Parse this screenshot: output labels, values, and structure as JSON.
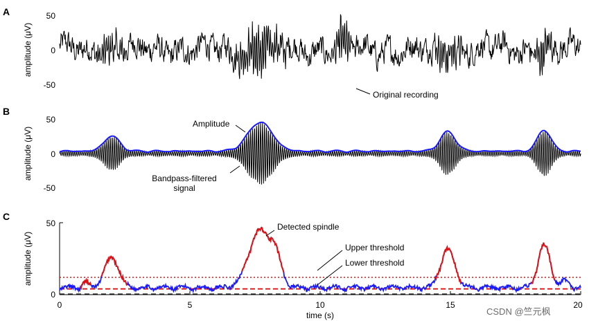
{
  "watermark": "CSDN @竺元枫",
  "chart_data": [
    {
      "type": "line",
      "panel_label": "A",
      "ylabel": "amplitude (μV)",
      "yticks": [
        -50,
        0,
        50
      ],
      "ylim": [
        -70,
        70
      ],
      "xlim": [
        0,
        20
      ],
      "series": [
        {
          "name": "Original recording",
          "color": "#000000"
        }
      ],
      "annotations": [
        {
          "text": "Original recording",
          "x": 11.6,
          "y": -58
        }
      ]
    },
    {
      "type": "line",
      "panel_label": "B",
      "ylabel": "amplitude (μV)",
      "yticks": [
        -50,
        0,
        50
      ],
      "ylim": [
        -55,
        55
      ],
      "xlim": [
        0,
        20
      ],
      "series": [
        {
          "name": "Bandpass-filtered signal",
          "color": "#000000"
        },
        {
          "name": "Amplitude",
          "color": "#1a1aff"
        }
      ],
      "spindle_bursts": [
        {
          "center": 2.0,
          "peak": 22,
          "width": 0.7
        },
        {
          "center": 7.7,
          "peak": 42,
          "width": 1.1
        },
        {
          "center": 14.9,
          "peak": 28,
          "width": 0.7
        },
        {
          "center": 18.6,
          "peak": 31,
          "width": 0.6
        }
      ],
      "annotations": [
        {
          "text": "Amplitude",
          "x": 6.2,
          "y": 41
        },
        {
          "text": "Bandpass-filtered",
          "x": 5.0,
          "y": -38
        },
        {
          "text": "signal",
          "x": 5.0,
          "y": -50
        }
      ]
    },
    {
      "type": "line",
      "panel_label": "C",
      "ylabel": "amplitude (μV)",
      "xlabel": "time (s)",
      "xticks": [
        0,
        5,
        10,
        15,
        20
      ],
      "yticks": [
        0,
        50
      ],
      "xlim": [
        0,
        20
      ],
      "ylim": [
        0,
        50
      ],
      "upper_threshold": 12,
      "lower_threshold": 4,
      "baseline": 0.5,
      "series": [
        {
          "name": "Amplitude",
          "color": "#1a1aff"
        },
        {
          "name": "Detected spindle",
          "color": "#e01010"
        }
      ],
      "detected_spindles": [
        [
          0.8,
          1.2
        ],
        [
          1.6,
          2.6
        ],
        [
          7.0,
          8.6
        ],
        [
          14.4,
          15.4
        ],
        [
          18.1,
          19.0
        ]
      ],
      "annotations": [
        {
          "text": "Detected spindle",
          "x": 8.6,
          "y": 44
        },
        {
          "text": "Upper threshold",
          "x": 11.3,
          "y": 33
        },
        {
          "text": "Lower threshold",
          "x": 11.3,
          "y": 22
        }
      ]
    }
  ]
}
